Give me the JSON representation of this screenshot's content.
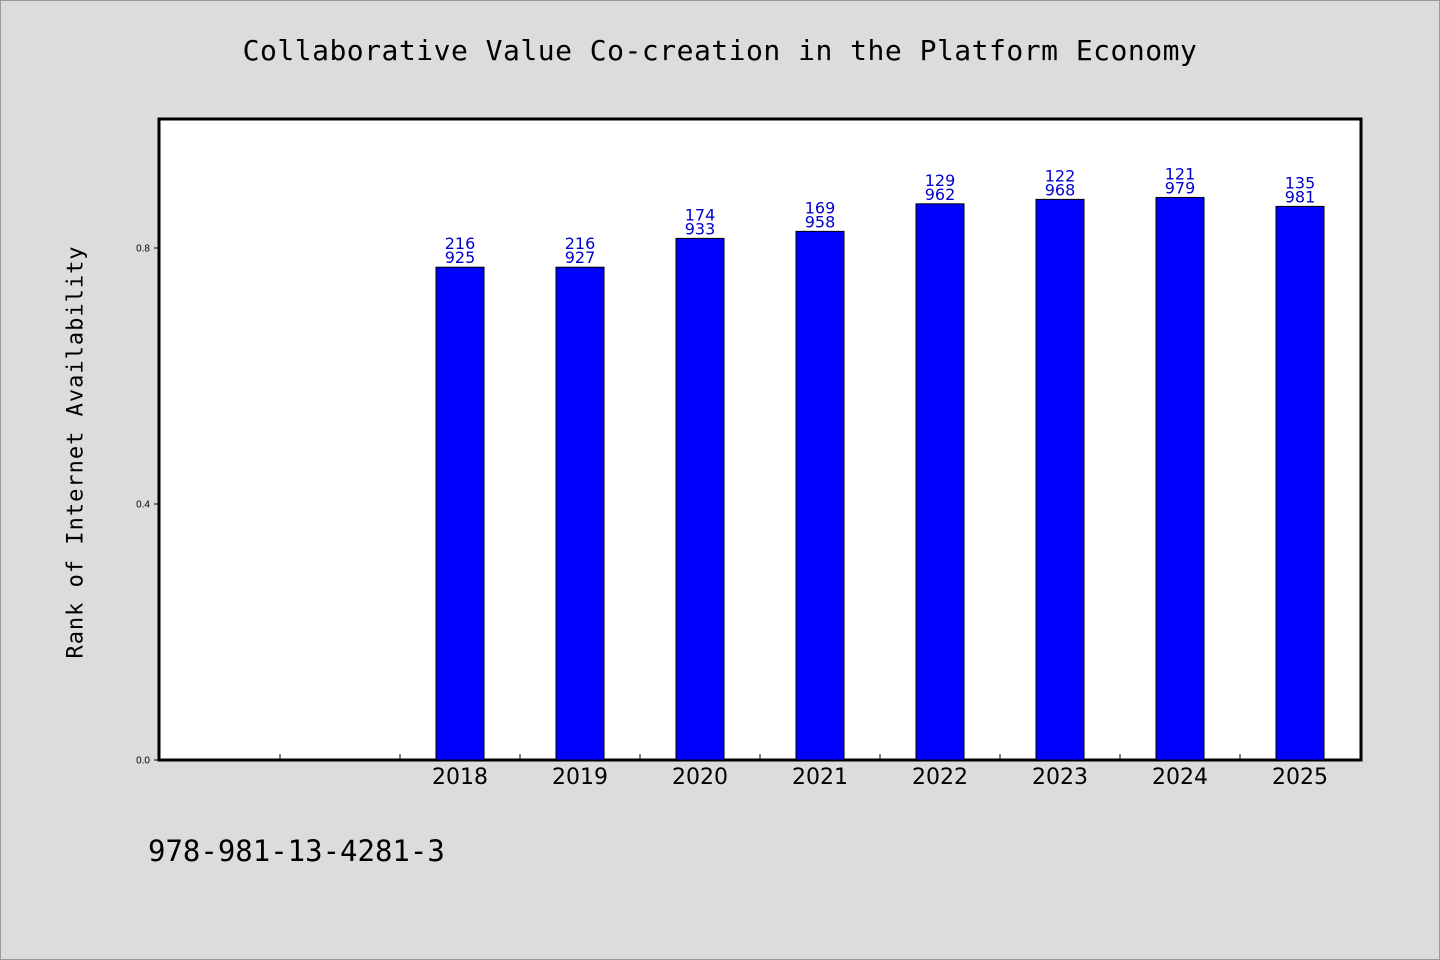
{
  "chart_data": {
    "type": "bar",
    "title": "Collaborative Value Co-creation in the Platform Economy",
    "xlabel": "",
    "ylabel": "Rank of Internet Availability",
    "categories": [
      "",
      "",
      "2018",
      "2019",
      "2020",
      "2021",
      "2022",
      "2023",
      "2024",
      "2025"
    ],
    "values": [
      null,
      null,
      0.77,
      0.77,
      0.815,
      0.826,
      0.869,
      0.876,
      0.879,
      0.865
    ],
    "value_labels": [
      [
        "",
        ""
      ],
      [
        "",
        ""
      ],
      [
        "216",
        "925"
      ],
      [
        "216",
        "927"
      ],
      [
        "174",
        "933"
      ],
      [
        "169",
        "958"
      ],
      [
        "129",
        "962"
      ],
      [
        "122",
        "968"
      ],
      [
        "121",
        "979"
      ],
      [
        "135",
        "981"
      ]
    ],
    "ylim": [
      0,
      1.0
    ],
    "yticks": [
      0.0,
      0.4,
      0.8
    ],
    "ytick_labels": [
      "0.0",
      "0.4",
      "0.8"
    ],
    "bar_color": "#0000ff",
    "label_color": "#0000cc",
    "plot_background": "#ffffff",
    "page_background": "#dcdcdc",
    "grid": false,
    "legend": "none"
  },
  "footer": {
    "isbn": "978-981-13-4281-3"
  }
}
